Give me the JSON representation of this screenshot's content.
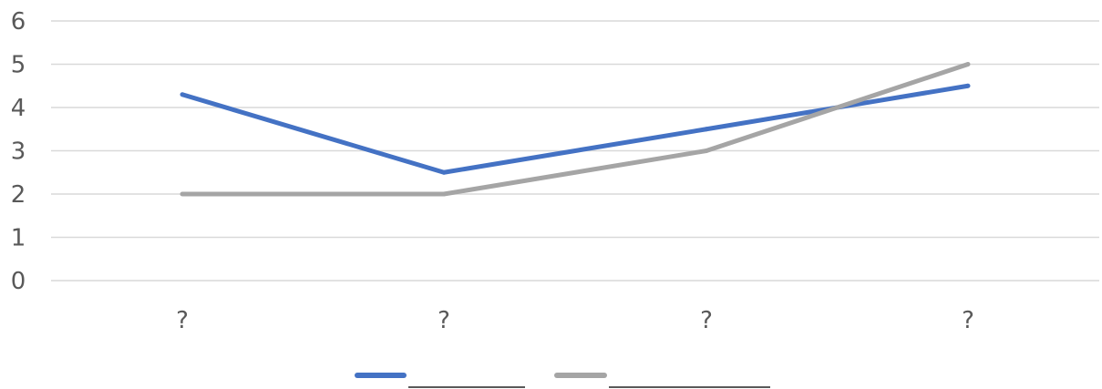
{
  "chart_data": {
    "type": "line",
    "title": "",
    "xlabel": "",
    "ylabel": "",
    "categories": [
      "?",
      "?",
      "?",
      "?"
    ],
    "ylim": [
      0,
      6
    ],
    "yticks": [
      0,
      1,
      2,
      3,
      4,
      5,
      6
    ],
    "ytick_labels": [
      "0",
      "1",
      "2",
      "3",
      "4",
      "5",
      "6"
    ],
    "grid": true,
    "legend_position": "bottom",
    "series": [
      {
        "values": [
          4.3,
          2.5,
          3.5,
          4.5
        ],
        "color": "#4472c4"
      },
      {
        "values": [
          2.0,
          2.0,
          3.0,
          5.0
        ],
        "color": "#a5a5a5"
      }
    ]
  }
}
